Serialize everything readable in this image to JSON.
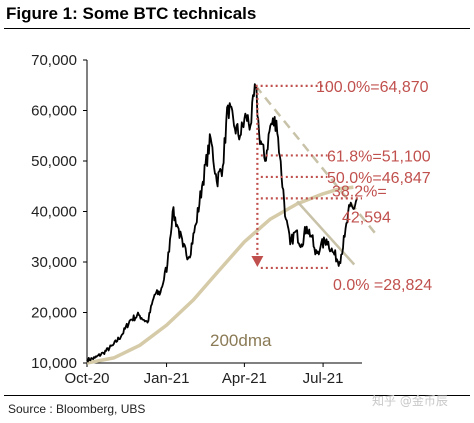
{
  "figure": {
    "title": "Figure 1: Some BTC technicals",
    "source": "Source : Bloomberg, UBS",
    "watermark": "知乎 @金币辰"
  },
  "colors": {
    "price": "#000000",
    "dma": "#d6cba8",
    "fib_levels": "#c0504d",
    "trend_channel": "#c8c2a8",
    "axis": "#000000"
  },
  "chart_data": {
    "type": "line",
    "title": "",
    "xlabel": "",
    "ylabel": "",
    "ylim": [
      10000,
      70000
    ],
    "yticks": [
      10000,
      20000,
      30000,
      40000,
      50000,
      60000,
      70000
    ],
    "ytick_labels": [
      "10,000",
      "20,000",
      "30,000",
      "40,000",
      "50,000",
      "60,000",
      "70,000"
    ],
    "xlim": [
      "2020-10-01",
      "2021-08-15"
    ],
    "xticks": [
      "2020-10-01",
      "2021-01-01",
      "2021-04-01",
      "2021-07-01"
    ],
    "xtick_labels": [
      "Oct-20",
      "Jan-21",
      "Apr-21",
      "Jul-21"
    ],
    "grid": false,
    "series": [
      {
        "x": [
          "2020-10-01",
          "2020-10-10",
          "2020-10-20",
          "2020-10-31",
          "2020-11-10",
          "2020-11-20",
          "2020-11-30",
          "2020-12-10",
          "2020-12-18",
          "2020-12-25",
          "2021-01-02",
          "2021-01-08",
          "2021-01-14",
          "2021-01-20",
          "2021-01-27",
          "2021-02-04",
          "2021-02-11",
          "2021-02-21",
          "2021-02-28",
          "2021-03-07",
          "2021-03-13",
          "2021-03-20",
          "2021-03-27",
          "2021-04-03",
          "2021-04-08",
          "2021-04-14",
          "2021-04-18",
          "2021-04-25",
          "2021-05-01",
          "2021-05-08",
          "2021-05-12",
          "2021-05-19",
          "2021-05-24",
          "2021-05-30",
          "2021-06-06",
          "2021-06-12",
          "2021-06-18",
          "2021-06-22",
          "2021-06-28",
          "2021-07-05",
          "2021-07-12",
          "2021-07-20",
          "2021-07-26",
          "2021-08-01",
          "2021-08-05",
          "2021-08-09"
        ],
        "values": [
          10600,
          11000,
          12000,
          13500,
          15500,
          18500,
          19500,
          18000,
          23500,
          24000,
          29500,
          40000,
          37000,
          33000,
          31000,
          37500,
          45000,
          54500,
          46000,
          49000,
          61000,
          57000,
          55000,
          59000,
          57000,
          64870,
          55500,
          50000,
          57000,
          58000,
          51000,
          38500,
          33500,
          36000,
          33500,
          37000,
          35000,
          31500,
          33000,
          34500,
          32000,
          30000,
          35000,
          41000,
          40500,
          42500
        ]
      },
      {
        "name": "200dma",
        "x": [
          "2020-10-01",
          "2020-11-01",
          "2020-12-01",
          "2021-01-01",
          "2021-02-01",
          "2021-03-01",
          "2021-04-01",
          "2021-05-01",
          "2021-06-01",
          "2021-07-01",
          "2021-07-20",
          "2021-08-05"
        ],
        "values": [
          10000,
          11000,
          13500,
          17500,
          22500,
          28000,
          34000,
          38500,
          41500,
          43500,
          44500,
          44800
        ]
      }
    ],
    "fibonacci_levels": [
      {
        "label": "100.0%=64,870",
        "value": 64870
      },
      {
        "label": "61.8%=51,100",
        "value": 51100
      },
      {
        "label": "50.0%=46,847",
        "value": 46847
      },
      {
        "label": "38.2%=",
        "value_label": "42,594",
        "value": 42594
      },
      {
        "label": "0.0% =28,824",
        "value": 28824
      }
    ]
  }
}
